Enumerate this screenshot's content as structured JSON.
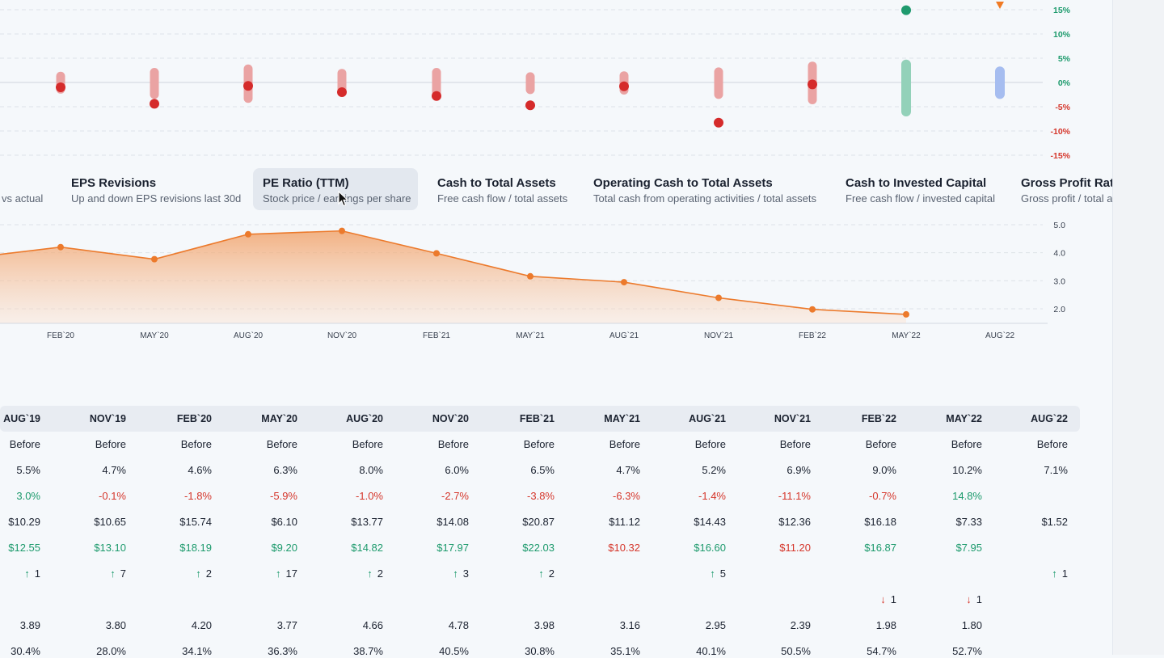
{
  "colors": {
    "neg_bar": "#eaa3a3",
    "neg_dot": "#d52b2b",
    "pos_bar": "#93d1b9",
    "pos_dot": "#1f9a6e",
    "future_bar": "#a6bdf0",
    "future_marker": "#f07a24",
    "line": "#ec7a2c",
    "pos_text": "#1c9a6c",
    "neg_text": "#d5362b"
  },
  "revision_chart": {
    "y_ticks": [
      "15%",
      "10%",
      "5%",
      "0%",
      "-5%",
      "-10%",
      "-15%"
    ],
    "y_values": [
      15,
      10,
      5,
      0,
      -5,
      -10,
      -15
    ],
    "ranges": [
      {
        "low": -2.3,
        "high": 2.2,
        "point": -1.0,
        "status": "negative"
      },
      {
        "low": -3.4,
        "high": 3.0,
        "point": -4.4,
        "status": "negative"
      },
      {
        "low": -4.2,
        "high": 3.7,
        "point": -0.7,
        "status": "negative"
      },
      {
        "low": -2.8,
        "high": 2.8,
        "point": -2.0,
        "status": "negative"
      },
      {
        "low": -3.0,
        "high": 3.0,
        "point": -2.8,
        "status": "negative"
      },
      {
        "low": -2.4,
        "high": 2.1,
        "point": -4.7,
        "status": "negative"
      },
      {
        "low": -2.5,
        "high": 2.3,
        "point": -0.8,
        "status": "negative"
      },
      {
        "low": -3.4,
        "high": 3.1,
        "point": -8.3,
        "status": "negative"
      },
      {
        "low": -4.5,
        "high": 4.3,
        "point": -0.4,
        "status": "negative"
      },
      {
        "low": -7.0,
        "high": 4.7,
        "point": 14.9,
        "status": "positive"
      },
      {
        "low": -3.4,
        "high": 3.3,
        "point": 15.8,
        "status": "future"
      }
    ]
  },
  "tabs": [
    {
      "title": "",
      "subtitle": "vs actual"
    },
    {
      "title": "EPS Revisions",
      "subtitle": "Up and down EPS revisions last 30d"
    },
    {
      "title": "PE Ratio (TTM)",
      "subtitle": "Stock price / earnings per share",
      "active": true
    },
    {
      "title": "Cash to Total Assets",
      "subtitle": "Free cash flow / total assets"
    },
    {
      "title": "Operating Cash to Total Assets",
      "subtitle": "Total cash from operating activities / total assets"
    },
    {
      "title": "Cash to Invested Capital",
      "subtitle": "Free cash flow / invested capital"
    },
    {
      "title": "Gross Profit Ratio",
      "subtitle": "Gross profit / total assets"
    }
  ],
  "chart_data": {
    "type": "area",
    "title": "",
    "x": [
      "NOV`19",
      "FEB`20",
      "MAY`20",
      "AUG`20",
      "NOV`20",
      "FEB`21",
      "MAY`21",
      "AUG`21",
      "NOV`21",
      "FEB`22",
      "MAY`22"
    ],
    "values": [
      3.8,
      4.2,
      3.77,
      4.66,
      4.78,
      3.98,
      3.16,
      2.95,
      2.39,
      1.98,
      1.8
    ],
    "x_ticks": [
      "FEB`20",
      "MAY`20",
      "AUG`20",
      "NOV`20",
      "FEB`21",
      "MAY`21",
      "AUG`21",
      "NOV`21",
      "FEB`22",
      "MAY`22",
      "AUG`22"
    ],
    "y_ticks": [
      "5.0",
      "4.0",
      "3.0",
      "2.0"
    ],
    "ylim": [
      1.5,
      5.4
    ],
    "grid": true
  },
  "table": {
    "columns": [
      "AUG`19",
      "NOV`19",
      "FEB`20",
      "MAY`20",
      "AUG`20",
      "NOV`20",
      "FEB`21",
      "MAY`21",
      "AUG`21",
      "NOV`21",
      "FEB`22",
      "MAY`22",
      "AUG`22"
    ],
    "rows": [
      {
        "kind": "plain",
        "cells": [
          "Before",
          "Before",
          "Before",
          "Before",
          "Before",
          "Before",
          "Before",
          "Before",
          "Before",
          "Before",
          "Before",
          "Before",
          "Before"
        ]
      },
      {
        "kind": "plain",
        "cells": [
          "5.5%",
          "4.7%",
          "4.6%",
          "6.3%",
          "8.0%",
          "6.0%",
          "6.5%",
          "4.7%",
          "5.2%",
          "6.9%",
          "9.0%",
          "10.2%",
          "7.1%"
        ]
      },
      {
        "kind": "signed",
        "cells": [
          "3.0%",
          "-0.1%",
          "-1.8%",
          "-5.9%",
          "-1.0%",
          "-2.7%",
          "-3.8%",
          "-6.3%",
          "-1.4%",
          "-11.1%",
          "-0.7%",
          "14.8%",
          ""
        ]
      },
      {
        "kind": "plain",
        "cells": [
          "$10.29",
          "$10.65",
          "$15.74",
          "$6.10",
          "$13.77",
          "$14.08",
          "$20.87",
          "$11.12",
          "$14.43",
          "$12.36",
          "$16.18",
          "$7.33",
          "$1.52"
        ]
      },
      {
        "kind": "colored",
        "cells": [
          "$12.55",
          "$13.10",
          "$18.19",
          "$9.20",
          "$14.82",
          "$17.97",
          "$22.03",
          "$10.32",
          "$16.60",
          "$11.20",
          "$16.87",
          "$7.95",
          ""
        ],
        "colors": [
          "pos",
          "pos",
          "pos",
          "pos",
          "pos",
          "pos",
          "pos",
          "neg",
          "pos",
          "neg",
          "pos",
          "pos",
          ""
        ]
      },
      {
        "kind": "up",
        "cells": [
          "1",
          "7",
          "2",
          "17",
          "2",
          "3",
          "2",
          "",
          "5",
          "",
          "",
          "",
          "1"
        ]
      },
      {
        "kind": "down",
        "cells": [
          "",
          "",
          "",
          "",
          "",
          "",
          "",
          "",
          "",
          "",
          "1",
          "1",
          ""
        ]
      },
      {
        "kind": "plain",
        "cells": [
          "3.89",
          "3.80",
          "4.20",
          "3.77",
          "4.66",
          "4.78",
          "3.98",
          "3.16",
          "2.95",
          "2.39",
          "1.98",
          "1.80",
          ""
        ]
      },
      {
        "kind": "plain",
        "cells": [
          "30.4%",
          "28.0%",
          "34.1%",
          "36.3%",
          "38.7%",
          "40.5%",
          "30.8%",
          "35.1%",
          "40.1%",
          "50.5%",
          "54.7%",
          "52.7%",
          ""
        ]
      }
    ]
  }
}
